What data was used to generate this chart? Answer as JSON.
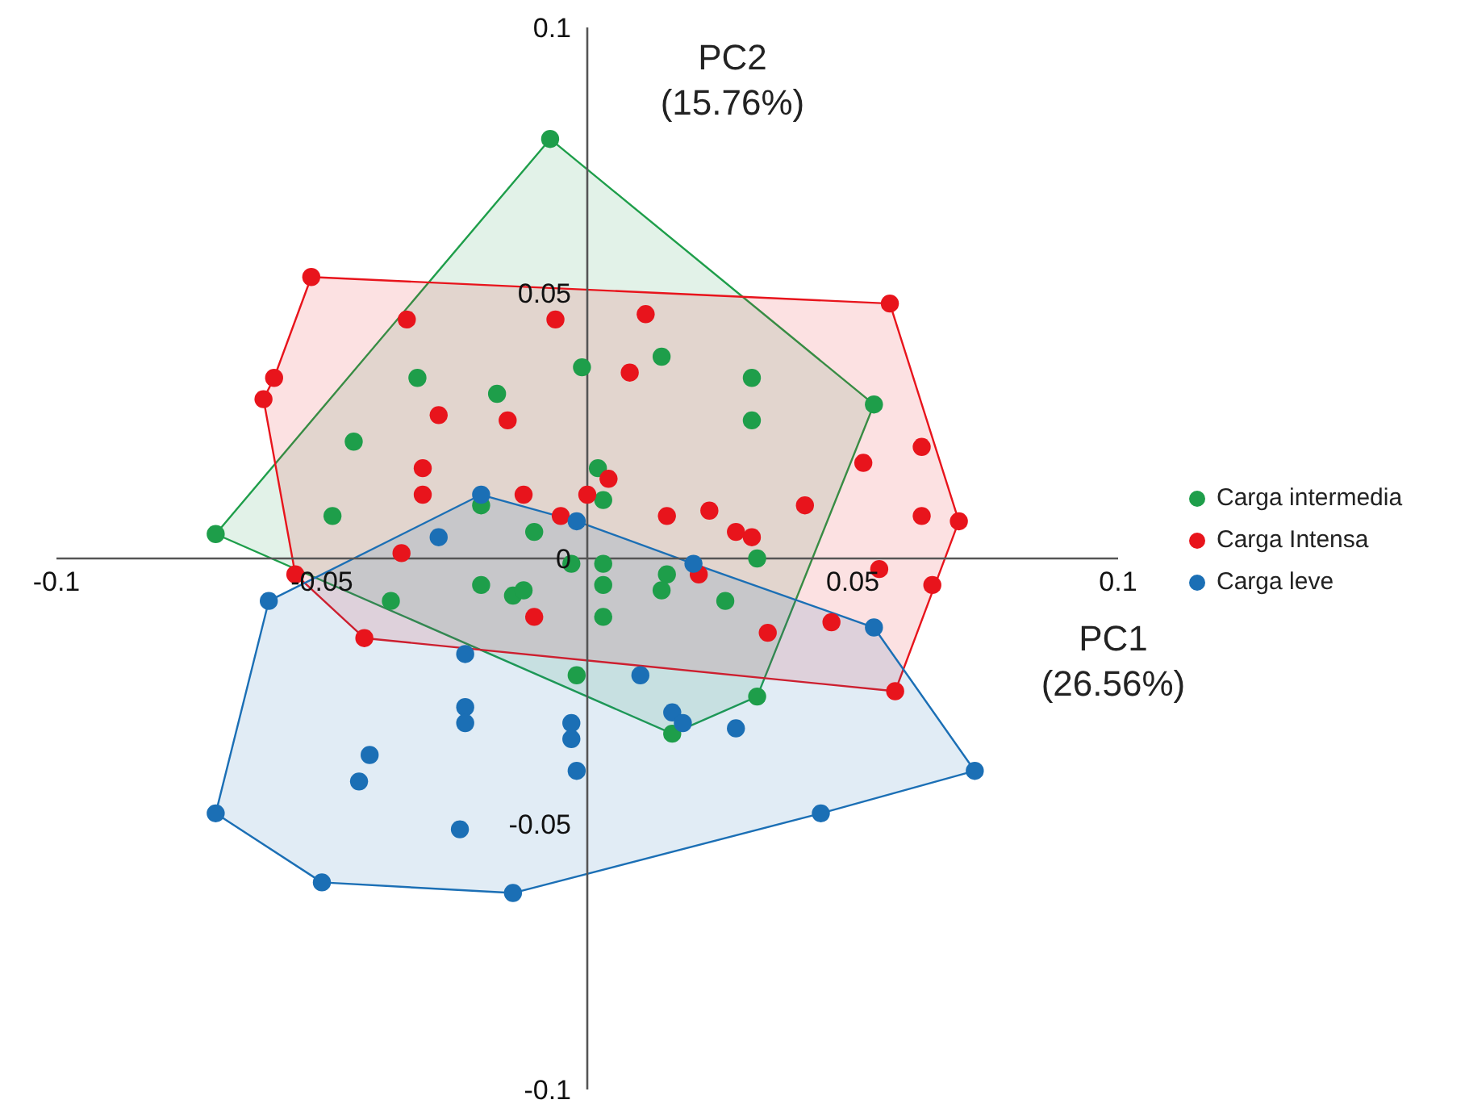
{
  "chart_data": {
    "type": "scatter",
    "xlabel": "PC1 (26.56%)",
    "ylabel": "PC2 (15.76%)",
    "xlim": [
      -0.1,
      0.1
    ],
    "ylim": [
      -0.1,
      0.1
    ],
    "xticks": [
      -0.1,
      -0.05,
      {
        "value": 0,
        "label": null
      },
      0.05,
      0.1
    ],
    "yticks": [
      -0.1,
      -0.05,
      0,
      0.05,
      0.1
    ],
    "legend": "right",
    "marker": "circle",
    "series": [
      {
        "type": "area",
        "marker": "none",
        "color": "#1e9e4a",
        "x": [
          -0.007,
          0.054,
          0.032,
          0.016,
          -0.07
        ],
        "values": [
          0.079,
          0.029,
          -0.026,
          -0.033,
          0.0046
        ]
      },
      {
        "type": "area",
        "marker": "none",
        "color": "#e8141c",
        "x": [
          -0.052,
          0.057,
          0.07,
          0.058,
          -0.042,
          -0.055,
          -0.061,
          -0.059
        ],
        "values": [
          0.053,
          0.048,
          0.007,
          -0.025,
          -0.015,
          -0.003,
          0.03,
          0.034
        ]
      },
      {
        "type": "area",
        "marker": "none",
        "color": "#1b6fb5",
        "x": [
          -0.06,
          -0.02,
          -0.002,
          0.02,
          0.054,
          0.073,
          0.044,
          -0.014,
          -0.05,
          -0.07
        ],
        "values": [
          -0.008,
          0.012,
          0.007,
          -0.001,
          -0.013,
          -0.04,
          -0.048,
          -0.063,
          -0.061,
          -0.048
        ]
      },
      {
        "name": "Carga intermedia",
        "color": "#1e9e4a",
        "x": [
          -0.007,
          -0.07,
          -0.048,
          -0.044,
          -0.032,
          -0.017,
          -0.001,
          0.014,
          0.031,
          0.031,
          0.054,
          0.002,
          0.003,
          -0.02,
          -0.01,
          -0.003,
          0.003,
          0.003,
          0.003,
          -0.02,
          -0.014,
          -0.012,
          -0.037,
          -0.002,
          0.015,
          0.014,
          0.026,
          0.032,
          0.032,
          0.016
        ],
        "values": [
          0.079,
          0.0046,
          0.008,
          0.022,
          0.034,
          0.031,
          0.036,
          0.038,
          0.034,
          0.026,
          0.029,
          0.017,
          0.011,
          0.01,
          0.005,
          -0.001,
          -0.001,
          -0.005,
          -0.011,
          -0.005,
          -0.007,
          -0.006,
          -0.008,
          -0.022,
          -0.003,
          -0.006,
          -0.008,
          0.0,
          -0.026,
          -0.033
        ]
      },
      {
        "name": "Carga Intensa",
        "color": "#e8141c",
        "x": [
          -0.052,
          0.057,
          -0.059,
          -0.061,
          -0.034,
          -0.006,
          0.011,
          0.008,
          -0.028,
          -0.015,
          -0.031,
          -0.031,
          -0.012,
          0.0,
          0.004,
          -0.005,
          -0.035,
          -0.055,
          -0.042,
          -0.01,
          0.015,
          0.023,
          0.028,
          0.031,
          0.041,
          0.052,
          0.063,
          0.063,
          0.07,
          0.055,
          0.065,
          0.046,
          0.058,
          0.021,
          0.034
        ],
        "values": [
          0.053,
          0.048,
          0.034,
          0.03,
          0.045,
          0.045,
          0.046,
          0.035,
          0.027,
          0.026,
          0.017,
          0.012,
          0.012,
          0.012,
          0.015,
          0.008,
          0.001,
          -0.003,
          -0.015,
          -0.011,
          0.008,
          0.009,
          0.005,
          0.004,
          0.01,
          0.018,
          0.021,
          0.008,
          0.007,
          -0.002,
          -0.005,
          -0.012,
          -0.025,
          -0.003,
          -0.014
        ]
      },
      {
        "name": "Carga leve",
        "color": "#1b6fb5",
        "x": [
          -0.02,
          -0.002,
          -0.028,
          0.02,
          0.054,
          0.073,
          0.044,
          -0.014,
          -0.05,
          -0.07,
          -0.06,
          -0.023,
          -0.023,
          -0.023,
          -0.041,
          -0.043,
          -0.024,
          -0.003,
          -0.003,
          -0.002,
          0.01,
          0.016,
          0.018,
          0.028
        ],
        "values": [
          0.012,
          0.007,
          0.004,
          -0.001,
          -0.013,
          -0.04,
          -0.048,
          -0.063,
          -0.061,
          -0.048,
          -0.008,
          -0.018,
          -0.028,
          -0.031,
          -0.037,
          -0.042,
          -0.051,
          -0.031,
          -0.034,
          -0.04,
          -0.022,
          -0.029,
          -0.031,
          -0.032
        ]
      }
    ]
  }
}
